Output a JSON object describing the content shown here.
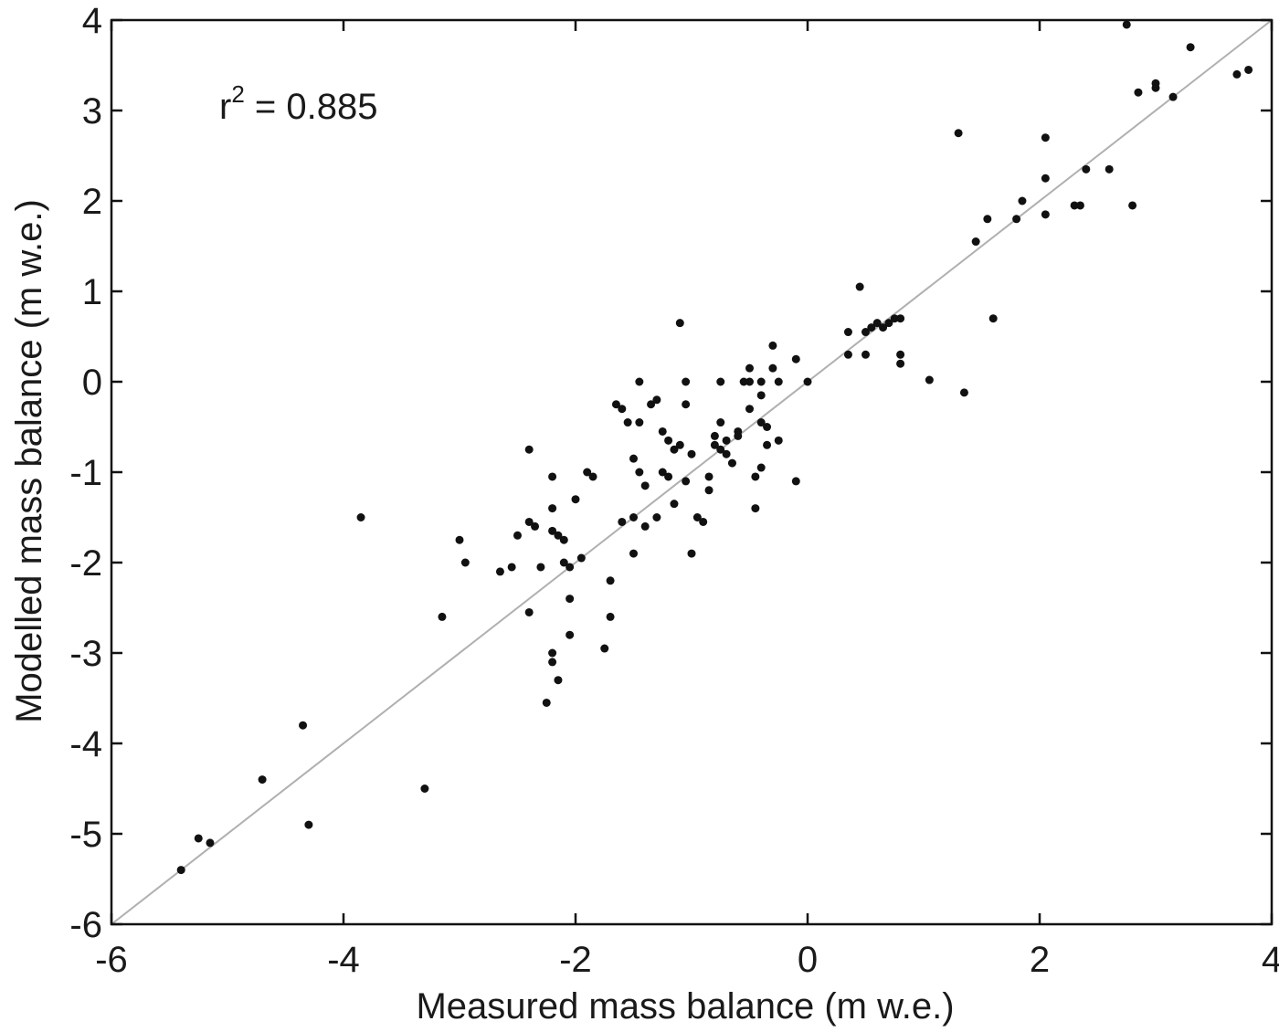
{
  "chart_data": {
    "type": "scatter",
    "title": "",
    "xlabel": "Measured mass balance (m w.e.)",
    "ylabel": "Modelled mass balance (m w.e.)",
    "xlim": [
      -6,
      4
    ],
    "ylim": [
      -6,
      4
    ],
    "xticks": [
      "-6",
      "-4",
      "-2",
      "0",
      "2",
      "4"
    ],
    "yticks": [
      "-6",
      "-5",
      "-4",
      "-3",
      "-2",
      "-1",
      "0",
      "1",
      "2",
      "3",
      "4"
    ],
    "grid": false,
    "annotation": {
      "prefix": "r",
      "superscript": "2",
      "suffix": " = 0.885"
    },
    "reference_line": {
      "x": [
        -6,
        4
      ],
      "y": [
        -6,
        4
      ],
      "color": "#b0b0b0"
    },
    "marker_color": "#111111",
    "points": [
      [
        -5.4,
        -5.4
      ],
      [
        -5.25,
        -5.05
      ],
      [
        -5.15,
        -5.1
      ],
      [
        -4.7,
        -4.4
      ],
      [
        -4.35,
        -3.8
      ],
      [
        -4.3,
        -4.9
      ],
      [
        -3.85,
        -1.5
      ],
      [
        -3.3,
        -4.5
      ],
      [
        -3.15,
        -2.6
      ],
      [
        -3.0,
        -1.75
      ],
      [
        -2.95,
        -2.0
      ],
      [
        -2.65,
        -2.1
      ],
      [
        -2.55,
        -2.05
      ],
      [
        -2.5,
        -1.7
      ],
      [
        -2.4,
        -0.75
      ],
      [
        -2.4,
        -1.55
      ],
      [
        -2.35,
        -1.6
      ],
      [
        -2.4,
        -2.55
      ],
      [
        -2.3,
        -2.05
      ],
      [
        -2.25,
        -3.55
      ],
      [
        -2.2,
        -1.05
      ],
      [
        -2.2,
        -1.4
      ],
      [
        -2.2,
        -1.65
      ],
      [
        -2.15,
        -1.7
      ],
      [
        -2.2,
        -3.0
      ],
      [
        -2.2,
        -3.1
      ],
      [
        -2.15,
        -3.3
      ],
      [
        -2.1,
        -1.75
      ],
      [
        -2.1,
        -2.0
      ],
      [
        -2.05,
        -2.05
      ],
      [
        -2.05,
        -2.4
      ],
      [
        -2.05,
        -2.8
      ],
      [
        -2.0,
        -1.3
      ],
      [
        -1.95,
        -1.95
      ],
      [
        -1.9,
        -1.0
      ],
      [
        -1.85,
        -1.05
      ],
      [
        -1.75,
        -2.95
      ],
      [
        -1.7,
        -2.2
      ],
      [
        -1.7,
        -2.6
      ],
      [
        -1.65,
        -0.25
      ],
      [
        -1.6,
        -0.3
      ],
      [
        -1.6,
        -1.55
      ],
      [
        -1.55,
        -0.45
      ],
      [
        -1.5,
        -0.85
      ],
      [
        -1.5,
        -1.5
      ],
      [
        -1.5,
        -1.9
      ],
      [
        -1.45,
        0.0
      ],
      [
        -1.45,
        -0.45
      ],
      [
        -1.45,
        -1.0
      ],
      [
        -1.4,
        -1.15
      ],
      [
        -1.4,
        -1.6
      ],
      [
        -1.35,
        -0.25
      ],
      [
        -1.3,
        -0.2
      ],
      [
        -1.3,
        -1.5
      ],
      [
        -1.25,
        -0.55
      ],
      [
        -1.25,
        -1.0
      ],
      [
        -1.2,
        -0.65
      ],
      [
        -1.2,
        -1.05
      ],
      [
        -1.15,
        -0.75
      ],
      [
        -1.15,
        -1.35
      ],
      [
        -1.1,
        -0.7
      ],
      [
        -1.05,
        -1.1
      ],
      [
        -1.1,
        0.65
      ],
      [
        -1.05,
        0.0
      ],
      [
        -1.05,
        -0.25
      ],
      [
        -1.0,
        -0.8
      ],
      [
        -1.0,
        -1.9
      ],
      [
        -0.95,
        -1.5
      ],
      [
        -0.9,
        -1.55
      ],
      [
        -0.85,
        -1.05
      ],
      [
        -0.85,
        -1.2
      ],
      [
        -0.8,
        -0.6
      ],
      [
        -0.8,
        -0.7
      ],
      [
        -0.75,
        -0.75
      ],
      [
        -0.75,
        0.0
      ],
      [
        -0.75,
        -0.45
      ],
      [
        -0.7,
        -0.8
      ],
      [
        -0.7,
        -0.65
      ],
      [
        -0.65,
        -0.9
      ],
      [
        -0.6,
        -0.6
      ],
      [
        -0.6,
        -0.55
      ],
      [
        -0.55,
        0.0
      ],
      [
        -0.5,
        0.0
      ],
      [
        -0.5,
        0.15
      ],
      [
        -0.5,
        -0.3
      ],
      [
        -0.45,
        -1.05
      ],
      [
        -0.45,
        -1.4
      ],
      [
        -0.4,
        -0.95
      ],
      [
        -0.4,
        -0.45
      ],
      [
        -0.4,
        -0.15
      ],
      [
        -0.4,
        0.0
      ],
      [
        -0.35,
        -0.7
      ],
      [
        -0.35,
        -0.5
      ],
      [
        -0.3,
        0.4
      ],
      [
        -0.3,
        0.15
      ],
      [
        -0.25,
        0.0
      ],
      [
        -0.25,
        -0.65
      ],
      [
        -0.1,
        -1.1
      ],
      [
        -0.1,
        0.25
      ],
      [
        0.0,
        0.0
      ],
      [
        0.35,
        0.3
      ],
      [
        0.35,
        0.55
      ],
      [
        0.45,
        1.05
      ],
      [
        0.5,
        0.55
      ],
      [
        0.5,
        0.3
      ],
      [
        0.55,
        0.6
      ],
      [
        0.6,
        0.65
      ],
      [
        0.65,
        0.6
      ],
      [
        0.7,
        0.65
      ],
      [
        0.75,
        0.7
      ],
      [
        0.8,
        0.7
      ],
      [
        0.8,
        0.3
      ],
      [
        0.8,
        0.2
      ],
      [
        1.05,
        0.02
      ],
      [
        1.3,
        2.75
      ],
      [
        1.35,
        -0.12
      ],
      [
        1.45,
        1.55
      ],
      [
        1.55,
        1.8
      ],
      [
        1.6,
        0.7
      ],
      [
        1.8,
        1.8
      ],
      [
        1.85,
        2.0
      ],
      [
        2.05,
        2.7
      ],
      [
        2.05,
        2.25
      ],
      [
        2.05,
        1.85
      ],
      [
        2.3,
        1.95
      ],
      [
        2.35,
        1.95
      ],
      [
        2.4,
        2.35
      ],
      [
        2.6,
        2.35
      ],
      [
        2.75,
        3.95
      ],
      [
        2.8,
        1.95
      ],
      [
        2.85,
        3.2
      ],
      [
        3.0,
        3.3
      ],
      [
        3.0,
        3.25
      ],
      [
        3.15,
        3.15
      ],
      [
        3.3,
        3.7
      ],
      [
        3.7,
        3.4
      ],
      [
        3.8,
        3.45
      ]
    ]
  }
}
